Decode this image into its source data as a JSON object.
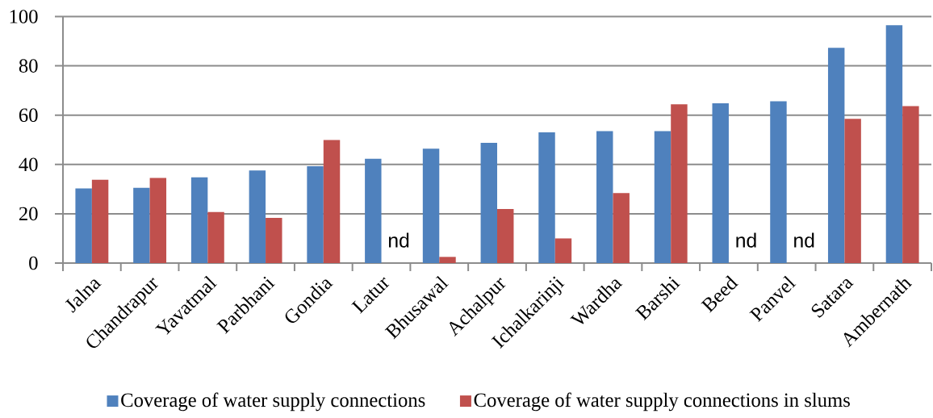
{
  "chart_data": {
    "type": "bar",
    "categories": [
      "Jalna",
      "Chandrapur",
      "Yavatmal",
      "Parbhani",
      "Gondia",
      "Latur",
      "Bhusawal",
      "Achalpur",
      "Ichalkarinji",
      "Wardha",
      "Barshi",
      "Beed",
      "Panvel",
      "Satara",
      "Ambernath"
    ],
    "series": [
      {
        "name": "Coverage of water supply connections",
        "color": "#4f81bd",
        "values": [
          30.3,
          30.5,
          34.8,
          37.6,
          39.3,
          42.3,
          46.4,
          48.8,
          53.0,
          53.5,
          53.5,
          64.8,
          65.6,
          87.3,
          96.5
        ]
      },
      {
        "name": "Coverage of water supply connections in slums",
        "color": "#c0504d",
        "values": [
          33.8,
          34.5,
          20.7,
          18.3,
          49.9,
          null,
          2.5,
          21.9,
          10.0,
          28.4,
          64.4,
          null,
          null,
          58.5,
          63.7
        ]
      }
    ],
    "ylim": [
      0,
      100
    ],
    "yticks": [
      0,
      20,
      40,
      60,
      80,
      100
    ],
    "grid": "y",
    "legend": "bottom",
    "annotations": [
      {
        "text": "nd",
        "x": "Latur",
        "y": 0
      },
      {
        "text": "nd",
        "x": "Beed",
        "y": 0
      },
      {
        "text": "nd",
        "x": "Panvel",
        "y": 0
      }
    ]
  }
}
